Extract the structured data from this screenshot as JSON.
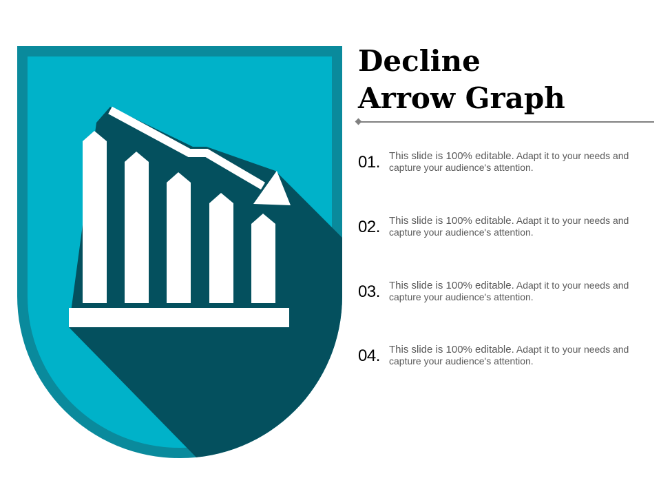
{
  "slide": {
    "title_line1": "Decline",
    "title_line2": "Arrow Graph"
  },
  "points": [
    {
      "number": "01.",
      "text_lead": "This slide is 100% editable.",
      "text_rest": " Adapt it to your needs and capture your audience's attention."
    },
    {
      "number": "02.",
      "text_lead": "This slide is 100% editable.",
      "text_rest": " Adapt it to your needs and capture your audience's attention."
    },
    {
      "number": "03.",
      "text_lead": "This slide is 100% editable.",
      "text_rest": " Adapt it to your needs and capture your audience's attention."
    },
    {
      "number": "04.",
      "text_lead": "This slide is 100% editable.",
      "text_rest": " Adapt it to your needs and capture your audience's attention."
    }
  ],
  "illustration": {
    "icon": "decline-bar-chart-icon",
    "colors": {
      "shield_dark": "#0a8a9c",
      "shield_light": "#00b2c9",
      "long_shadow": "#04505e",
      "foreground": "#ffffff"
    }
  }
}
